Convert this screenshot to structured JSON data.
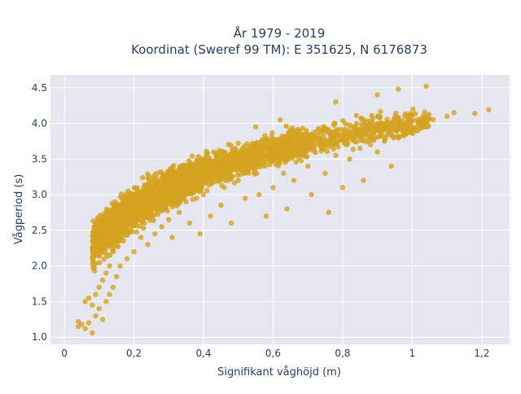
{
  "chart_data": {
    "type": "scatter",
    "title_line1": "År 1979 - 2019",
    "title_line2": "Koordinat (Sweref 99 TM): E 351625, N 6176873",
    "xlabel": "Signifikant våghöjd (m)",
    "ylabel": "Vågperiod (s)",
    "xlim": [
      -0.04,
      1.28
    ],
    "ylim": [
      0.9,
      4.68
    ],
    "x_ticks": [
      0,
      0.2,
      0.4,
      0.6,
      0.8,
      1,
      1.2
    ],
    "x_tick_labels": [
      "0",
      "0,2",
      "0,4",
      "0,6",
      "0,8",
      "1",
      "1,2"
    ],
    "y_ticks": [
      1.0,
      1.5,
      2.0,
      2.5,
      3.0,
      3.5,
      4.0,
      4.5
    ],
    "y_tick_labels": [
      "1.0",
      "1.5",
      "2.0",
      "2.5",
      "3.0",
      "3.5",
      "4.0",
      "4.5"
    ],
    "grid": true,
    "marker_color": "#d4a320",
    "plot_bg": "#e5e6ef",
    "points": [
      [
        0.04,
        1.15
      ],
      [
        0.04,
        1.22
      ],
      [
        0.05,
        1.18
      ],
      [
        0.06,
        1.12
      ],
      [
        0.07,
        1.2
      ],
      [
        0.08,
        1.06
      ],
      [
        0.06,
        1.5
      ],
      [
        0.07,
        1.55
      ],
      [
        0.08,
        1.45
      ],
      [
        0.09,
        1.6
      ],
      [
        0.09,
        1.3
      ],
      [
        0.1,
        1.4
      ],
      [
        0.1,
        1.7
      ],
      [
        0.11,
        1.8
      ],
      [
        0.11,
        1.25
      ],
      [
        0.12,
        1.5
      ],
      [
        0.12,
        1.9
      ],
      [
        0.13,
        2.0
      ],
      [
        0.13,
        1.6
      ],
      [
        0.14,
        2.2
      ],
      [
        0.14,
        1.7
      ],
      [
        0.15,
        2.4
      ],
      [
        0.15,
        1.85
      ],
      [
        0.16,
        2.6
      ],
      [
        0.16,
        2.0
      ],
      [
        0.17,
        2.35
      ],
      [
        0.18,
        2.8
      ],
      [
        0.18,
        2.1
      ],
      [
        0.19,
        2.5
      ],
      [
        0.2,
        2.2
      ],
      [
        0.2,
        2.7
      ],
      [
        0.21,
        2.85
      ],
      [
        0.22,
        2.4
      ],
      [
        0.22,
        2.9
      ],
      [
        0.23,
        2.6
      ],
      [
        0.24,
        2.3
      ],
      [
        0.24,
        3.0
      ],
      [
        0.25,
        2.7
      ],
      [
        0.26,
        2.45
      ],
      [
        0.26,
        3.1
      ],
      [
        0.27,
        2.8
      ],
      [
        0.28,
        2.55
      ],
      [
        0.28,
        3.2
      ],
      [
        0.29,
        2.9
      ],
      [
        0.3,
        2.65
      ],
      [
        0.3,
        3.05
      ],
      [
        0.31,
        2.4
      ],
      [
        0.32,
        3.1
      ],
      [
        0.33,
        2.75
      ],
      [
        0.34,
        3.3
      ],
      [
        0.35,
        2.9
      ],
      [
        0.36,
        2.6
      ],
      [
        0.37,
        3.2
      ],
      [
        0.38,
        2.95
      ],
      [
        0.39,
        2.45
      ],
      [
        0.4,
        3.4
      ],
      [
        0.4,
        3.0
      ],
      [
        0.42,
        2.7
      ],
      [
        0.43,
        3.25
      ],
      [
        0.44,
        3.55
      ],
      [
        0.45,
        2.85
      ],
      [
        0.46,
        3.1
      ],
      [
        0.47,
        3.45
      ],
      [
        0.48,
        2.6
      ],
      [
        0.5,
        3.2
      ],
      [
        0.5,
        3.6
      ],
      [
        0.52,
        2.95
      ],
      [
        0.53,
        3.3
      ],
      [
        0.55,
        3.7
      ],
      [
        0.56,
        3.0
      ],
      [
        0.57,
        3.4
      ],
      [
        0.58,
        2.7
      ],
      [
        0.6,
        3.5
      ],
      [
        0.6,
        3.1
      ],
      [
        0.62,
        3.75
      ],
      [
        0.63,
        3.3
      ],
      [
        0.64,
        2.8
      ],
      [
        0.65,
        3.55
      ],
      [
        0.66,
        3.2
      ],
      [
        0.68,
        3.85
      ],
      [
        0.7,
        3.4
      ],
      [
        0.71,
        3.0
      ],
      [
        0.72,
        3.6
      ],
      [
        0.74,
        3.9
      ],
      [
        0.75,
        3.3
      ],
      [
        0.76,
        2.75
      ],
      [
        0.78,
        3.55
      ],
      [
        0.8,
        3.8
      ],
      [
        0.8,
        3.1
      ],
      [
        0.82,
        3.5
      ],
      [
        0.84,
        4.0
      ],
      [
        0.85,
        3.65
      ],
      [
        0.86,
        3.2
      ],
      [
        0.88,
        3.7
      ],
      [
        0.9,
        4.1
      ],
      [
        0.9,
        3.6
      ],
      [
        0.92,
        3.75
      ],
      [
        0.94,
        3.4
      ],
      [
        0.96,
        3.8
      ],
      [
        0.98,
        3.85
      ],
      [
        1.0,
        3.9
      ],
      [
        1.02,
        4.0
      ],
      [
        1.04,
        3.95
      ],
      [
        1.06,
        4.05
      ],
      [
        1.1,
        4.1
      ],
      [
        1.12,
        4.15
      ],
      [
        1.18,
        4.14
      ],
      [
        1.22,
        4.19
      ],
      [
        0.96,
        4.48
      ],
      [
        1.04,
        4.52
      ],
      [
        0.9,
        4.4
      ],
      [
        0.78,
        4.3
      ],
      [
        0.62,
        4.05
      ],
      [
        0.55,
        3.95
      ]
    ]
  }
}
